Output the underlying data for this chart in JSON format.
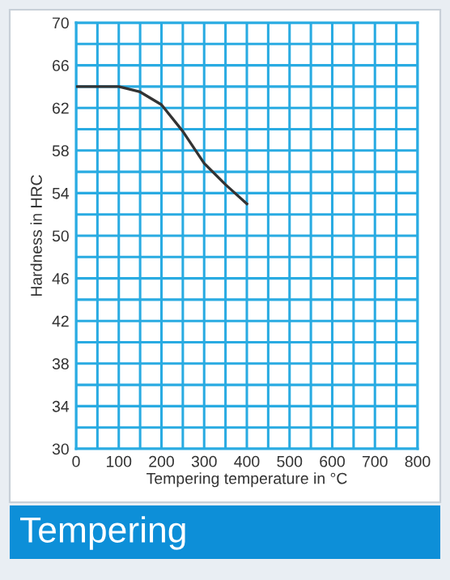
{
  "chart_data": {
    "type": "line",
    "title": "Tempering",
    "xlabel": "Tempering temperature in °C",
    "ylabel": "Hardness in HRC",
    "x": [
      0,
      50,
      100,
      150,
      200,
      250,
      300,
      350,
      400
    ],
    "series": [
      {
        "color": "#333333",
        "values": [
          64,
          64,
          64,
          63.5,
          62.3,
          59.8,
          56.8,
          54.8,
          53
        ]
      }
    ],
    "xlim": [
      0,
      800
    ],
    "ylim": [
      30,
      70
    ],
    "xticks": [
      0,
      {
        "value": 50,
        "label": null
      },
      100,
      {
        "value": 150,
        "label": null
      },
      200,
      {
        "value": 250,
        "label": null
      },
      300,
      {
        "value": 350,
        "label": null
      },
      400,
      {
        "value": 450,
        "label": null
      },
      500,
      {
        "value": 550,
        "label": null
      },
      600,
      {
        "value": 650,
        "label": null
      },
      700,
      {
        "value": 750,
        "label": null
      },
      800
    ],
    "yticks": [
      30,
      {
        "value": 32,
        "label": null
      },
      34,
      {
        "value": 36,
        "label": null
      },
      38,
      {
        "value": 40,
        "label": null
      },
      42,
      {
        "value": 44,
        "label": null
      },
      46,
      {
        "value": 48,
        "label": null
      },
      50,
      {
        "value": 52,
        "label": null
      },
      54,
      {
        "value": 56,
        "label": null
      },
      58,
      {
        "value": 60,
        "label": null
      },
      62,
      {
        "value": 64,
        "label": null
      },
      66,
      {
        "value": 68,
        "label": null
      },
      70
    ],
    "grid": true,
    "marker": "none",
    "line_style": "solid",
    "legend": false
  }
}
